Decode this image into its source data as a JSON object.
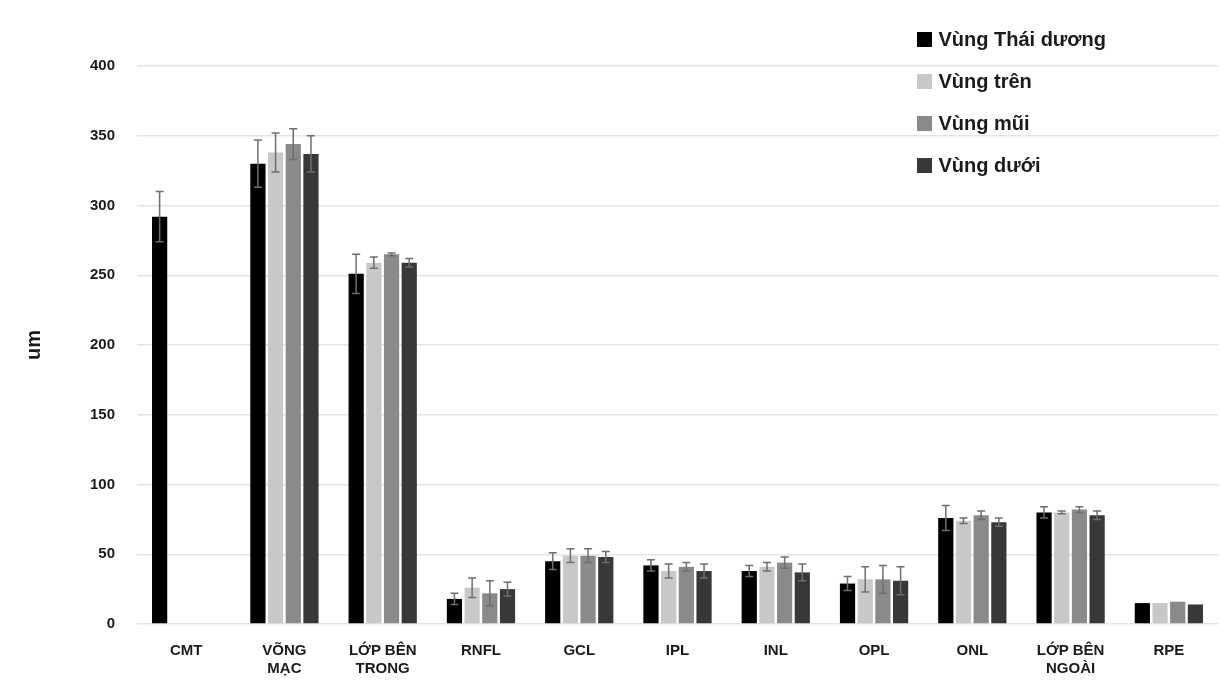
{
  "chart_data": {
    "type": "bar",
    "ylabel": "um",
    "categories": [
      "CMT",
      "VÕNG MẠC",
      "LỚP BÊN TRONG",
      "RNFL",
      "GCL",
      "IPL",
      "INL",
      "OPL",
      "ONL",
      "LỚP BÊN NGOÀI",
      "RPE"
    ],
    "series": [
      {
        "name": "Vùng Thái dương",
        "color": "#000000",
        "values": [
          292,
          330,
          251,
          18,
          45,
          42,
          38,
          29,
          76,
          80,
          15
        ],
        "errors": [
          18,
          17,
          14,
          4,
          6,
          4,
          4,
          5,
          9,
          4,
          null
        ]
      },
      {
        "name": "Vùng trên",
        "color": "#c8c8c8",
        "values": [
          null,
          338,
          259,
          26,
          49,
          38,
          41,
          32,
          74,
          80,
          15
        ],
        "errors": [
          null,
          14,
          4,
          7,
          5,
          5,
          3,
          9,
          2,
          1,
          null
        ]
      },
      {
        "name": "Vùng mũi",
        "color": "#8a8a8a",
        "values": [
          null,
          344,
          265,
          22,
          49,
          41,
          44,
          32,
          78,
          82,
          16
        ],
        "errors": [
          null,
          11,
          1,
          9,
          5,
          3,
          4,
          10,
          3,
          2,
          null
        ]
      },
      {
        "name": "Vùng dưới",
        "color": "#383838",
        "values": [
          null,
          337,
          259,
          25,
          48,
          38,
          37,
          31,
          73,
          78,
          14
        ],
        "errors": [
          null,
          13,
          3,
          5,
          4,
          5,
          6,
          10,
          3,
          3,
          null
        ]
      }
    ],
    "ylim": [
      0,
      400
    ],
    "yticks": [
      0,
      50,
      100,
      150,
      200,
      250,
      300,
      350,
      400
    ],
    "grid": "y",
    "legend": "top right"
  }
}
